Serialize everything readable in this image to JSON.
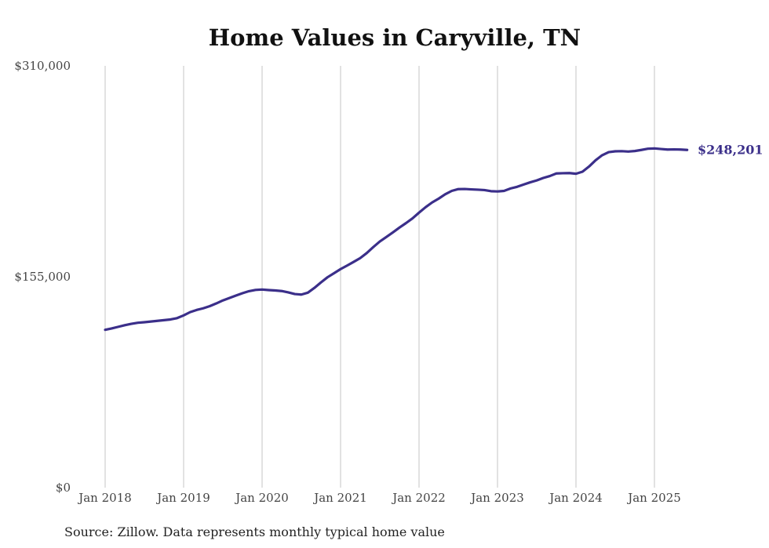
{
  "chart_data": {
    "type": "line",
    "title": "Home Values in Caryville, TN",
    "source_note": "Source: Zillow. Data represents monthly typical home value",
    "ylim": [
      0,
      310000
    ],
    "y_ticks": [
      0,
      155000,
      310000
    ],
    "y_tick_labels": [
      "$0",
      "$155,000",
      "$310,000"
    ],
    "x_tick_labels": [
      "Jan 2018",
      "Jan 2019",
      "Jan 2020",
      "Jan 2021",
      "Jan 2022",
      "Jan 2023",
      "Jan 2024",
      "Jan 2025"
    ],
    "grid": "vertical",
    "line_color": "#3b2f8a",
    "end_label": "$248,201",
    "series": [
      {
        "x": [
          "2018-01",
          "2018-02",
          "2018-03",
          "2018-04",
          "2018-05",
          "2018-06",
          "2018-07",
          "2018-08",
          "2018-09",
          "2018-10",
          "2018-11",
          "2018-12",
          "2019-01",
          "2019-02",
          "2019-03",
          "2019-04",
          "2019-05",
          "2019-06",
          "2019-07",
          "2019-08",
          "2019-09",
          "2019-10",
          "2019-11",
          "2019-12",
          "2020-01",
          "2020-02",
          "2020-03",
          "2020-04",
          "2020-05",
          "2020-06",
          "2020-07",
          "2020-08",
          "2020-09",
          "2020-10",
          "2020-11",
          "2020-12",
          "2021-01",
          "2021-02",
          "2021-03",
          "2021-04",
          "2021-05",
          "2021-06",
          "2021-07",
          "2021-08",
          "2021-09",
          "2021-10",
          "2021-11",
          "2021-12",
          "2022-01",
          "2022-02",
          "2022-03",
          "2022-04",
          "2022-05",
          "2022-06",
          "2022-07",
          "2022-08",
          "2022-09",
          "2022-10",
          "2022-11",
          "2022-12",
          "2023-01",
          "2023-02",
          "2023-03",
          "2023-04",
          "2023-05",
          "2023-06",
          "2023-07",
          "2023-08",
          "2023-09",
          "2023-10",
          "2023-11",
          "2023-12",
          "2024-01",
          "2024-02",
          "2024-03",
          "2024-04",
          "2024-05",
          "2024-06",
          "2024-07",
          "2024-08",
          "2024-09",
          "2024-10",
          "2024-11",
          "2024-12",
          "2025-01",
          "2025-02",
          "2025-03",
          "2025-04",
          "2025-05",
          "2025-06"
        ],
        "values": [
          116000,
          117000,
          118200,
          119400,
          120400,
          121200,
          121600,
          122100,
          122600,
          123100,
          123600,
          124600,
          126600,
          129000,
          130600,
          131800,
          133400,
          135400,
          137600,
          139400,
          141200,
          142900,
          144400,
          145300,
          145600,
          145200,
          144900,
          144500,
          143500,
          142300,
          141900,
          143300,
          146800,
          150800,
          154600,
          157600,
          160600,
          163200,
          165900,
          168700,
          172400,
          176800,
          180900,
          184200,
          187600,
          191100,
          194400,
          197900,
          202100,
          206100,
          209600,
          212400,
          215600,
          218100,
          219400,
          219500,
          219200,
          219000,
          218700,
          217900,
          217700,
          218100,
          219900,
          221100,
          222800,
          224400,
          225800,
          227600,
          229000,
          230900,
          231100,
          231200,
          230700,
          232200,
          236000,
          240600,
          244300,
          246600,
          247200,
          247300,
          247000,
          247400,
          248200,
          249100,
          249300,
          248900,
          248500,
          248600,
          248500,
          248201
        ]
      }
    ]
  }
}
